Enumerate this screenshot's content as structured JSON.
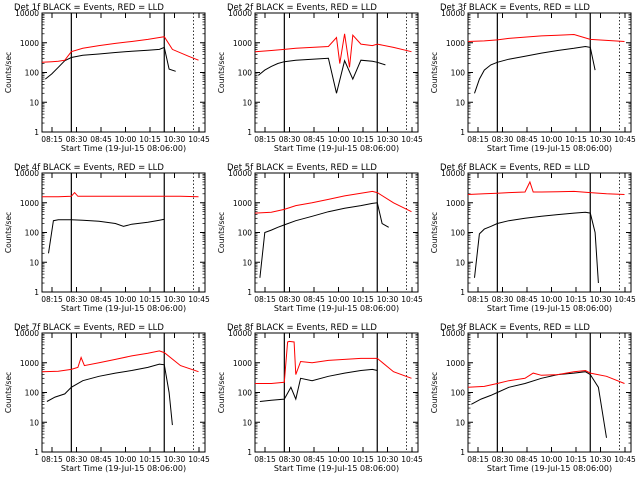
{
  "figure": {
    "ylabel": "Counts/sec",
    "xlabel": "Start Time (19-Jul-15 08:06:00)",
    "xticks": [
      "08:15",
      "08:30",
      "08:45",
      "10:00",
      "10:15",
      "10:30",
      "10:45"
    ],
    "yticks": [
      "1",
      "10",
      "100",
      "1000",
      "10000"
    ],
    "colors": {
      "events": "#000000",
      "lld": "#ff0000",
      "axis": "#000000"
    }
  },
  "chart_data": [
    {
      "type": "line",
      "title": "Det 1f BLACK = Events, RED = LLD",
      "yscale": "log",
      "ylim": [
        1,
        10000
      ],
      "xlim": [
        0,
        1
      ],
      "markers": [
        0.18,
        0.75,
        0.93
      ],
      "series": [
        {
          "name": "Events",
          "x": [
            0.02,
            0.06,
            0.1,
            0.14,
            0.18,
            0.25,
            0.35,
            0.45,
            0.55,
            0.65,
            0.72,
            0.75,
            0.78,
            0.82
          ],
          "y": [
            60,
            90,
            150,
            250,
            320,
            380,
            420,
            470,
            520,
            560,
            600,
            700,
            130,
            110
          ]
        },
        {
          "name": "LLD",
          "x": [
            0.0,
            0.06,
            0.1,
            0.14,
            0.18,
            0.25,
            0.35,
            0.45,
            0.55,
            0.65,
            0.72,
            0.75,
            0.8,
            0.9,
            0.96
          ],
          "y": [
            220,
            230,
            240,
            260,
            500,
            650,
            800,
            950,
            1100,
            1300,
            1500,
            1600,
            600,
            350,
            260
          ]
        }
      ]
    },
    {
      "type": "line",
      "title": "Det 2f BLACK = Events, RED = LLD",
      "yscale": "log",
      "ylim": [
        1,
        10000
      ],
      "xlim": [
        0,
        1
      ],
      "markers": [
        0.18,
        0.75,
        0.93
      ],
      "series": [
        {
          "name": "Events",
          "x": [
            0.02,
            0.06,
            0.1,
            0.14,
            0.18,
            0.25,
            0.35,
            0.45,
            0.5,
            0.55,
            0.6,
            0.65,
            0.72,
            0.75,
            0.8
          ],
          "y": [
            80,
            120,
            160,
            200,
            230,
            260,
            280,
            300,
            20,
            250,
            60,
            260,
            240,
            220,
            180
          ]
        },
        {
          "name": "LLD",
          "x": [
            0.0,
            0.1,
            0.18,
            0.25,
            0.35,
            0.45,
            0.5,
            0.52,
            0.55,
            0.58,
            0.6,
            0.65,
            0.72,
            0.75,
            0.85,
            0.96
          ],
          "y": [
            500,
            550,
            600,
            650,
            700,
            750,
            1500,
            200,
            2000,
            150,
            1800,
            900,
            800,
            900,
            700,
            500
          ]
        }
      ]
    },
    {
      "type": "line",
      "title": "Det 3f BLACK = Events, RED = LLD",
      "yscale": "log",
      "ylim": [
        1,
        10000
      ],
      "xlim": [
        0,
        1
      ],
      "markers": [
        0.18,
        0.75,
        0.93
      ],
      "series": [
        {
          "name": "Events",
          "x": [
            0.04,
            0.07,
            0.1,
            0.14,
            0.18,
            0.25,
            0.35,
            0.45,
            0.55,
            0.65,
            0.72,
            0.75,
            0.78
          ],
          "y": [
            20,
            60,
            120,
            180,
            220,
            280,
            350,
            450,
            550,
            650,
            750,
            700,
            120
          ]
        },
        {
          "name": "LLD",
          "x": [
            0.0,
            0.1,
            0.18,
            0.25,
            0.35,
            0.45,
            0.55,
            0.65,
            0.75,
            0.85,
            0.96
          ],
          "y": [
            1100,
            1150,
            1250,
            1400,
            1550,
            1700,
            1800,
            1900,
            1300,
            1200,
            1100
          ]
        }
      ]
    },
    {
      "type": "line",
      "title": "Det 4f BLACK = Events, RED = LLD",
      "yscale": "log",
      "ylim": [
        1,
        10000
      ],
      "xlim": [
        0,
        1
      ],
      "markers": [
        0.18,
        0.75,
        0.93
      ],
      "series": [
        {
          "name": "Events",
          "x": [
            0.04,
            0.07,
            0.1,
            0.18,
            0.25,
            0.35,
            0.45,
            0.5,
            0.55,
            0.65,
            0.72,
            0.75
          ],
          "y": [
            20,
            250,
            270,
            270,
            260,
            240,
            200,
            160,
            190,
            220,
            260,
            280
          ]
        },
        {
          "name": "LLD",
          "x": [
            0.0,
            0.1,
            0.18,
            0.2,
            0.22,
            0.25,
            0.35,
            0.45,
            0.55,
            0.65,
            0.75,
            0.85,
            0.96
          ],
          "y": [
            1600,
            1600,
            1650,
            2200,
            1650,
            1650,
            1650,
            1650,
            1650,
            1650,
            1650,
            1650,
            1600
          ]
        }
      ]
    },
    {
      "type": "line",
      "title": "Det 5f BLACK = Events, RED = LLD",
      "yscale": "log",
      "ylim": [
        1,
        10000
      ],
      "xlim": [
        0,
        1
      ],
      "markers": [
        0.18,
        0.75,
        0.93
      ],
      "series": [
        {
          "name": "Events",
          "x": [
            0.03,
            0.06,
            0.1,
            0.14,
            0.18,
            0.25,
            0.35,
            0.45,
            0.55,
            0.65,
            0.72,
            0.75,
            0.78,
            0.82
          ],
          "y": [
            3,
            100,
            120,
            150,
            180,
            250,
            350,
            500,
            650,
            800,
            950,
            1000,
            200,
            150
          ]
        },
        {
          "name": "LLD",
          "x": [
            0.0,
            0.1,
            0.18,
            0.25,
            0.35,
            0.45,
            0.55,
            0.65,
            0.72,
            0.75,
            0.85,
            0.96
          ],
          "y": [
            450,
            480,
            600,
            800,
            1000,
            1300,
            1700,
            2100,
            2400,
            2200,
            1000,
            500
          ]
        }
      ]
    },
    {
      "type": "line",
      "title": "Det 6f BLACK = Events, RED = LLD",
      "yscale": "log",
      "ylim": [
        1,
        10000
      ],
      "xlim": [
        0,
        1
      ],
      "markers": [
        0.18,
        0.75,
        0.93
      ],
      "series": [
        {
          "name": "Events",
          "x": [
            0.04,
            0.07,
            0.1,
            0.14,
            0.18,
            0.25,
            0.35,
            0.45,
            0.55,
            0.65,
            0.72,
            0.75,
            0.78,
            0.8
          ],
          "y": [
            3,
            90,
            130,
            160,
            200,
            250,
            300,
            350,
            400,
            450,
            480,
            450,
            100,
            2
          ]
        },
        {
          "name": "LLD",
          "x": [
            0.0,
            0.1,
            0.18,
            0.25,
            0.35,
            0.38,
            0.4,
            0.45,
            0.55,
            0.65,
            0.75,
            0.85,
            0.96
          ],
          "y": [
            1900,
            2000,
            2100,
            2200,
            2300,
            5000,
            2300,
            2300,
            2350,
            2400,
            2200,
            2000,
            1900
          ]
        }
      ]
    },
    {
      "type": "line",
      "title": "Det 7f BLACK = Events, RED = LLD",
      "yscale": "log",
      "ylim": [
        1,
        10000
      ],
      "xlim": [
        0,
        1
      ],
      "markers": [
        0.18,
        0.75,
        0.93
      ],
      "series": [
        {
          "name": "Events",
          "x": [
            0.03,
            0.08,
            0.14,
            0.18,
            0.25,
            0.35,
            0.45,
            0.55,
            0.65,
            0.72,
            0.75,
            0.78,
            0.8
          ],
          "y": [
            50,
            70,
            90,
            150,
            250,
            350,
            450,
            550,
            700,
            900,
            850,
            100,
            8
          ]
        },
        {
          "name": "LLD",
          "x": [
            0.0,
            0.1,
            0.18,
            0.22,
            0.24,
            0.26,
            0.35,
            0.45,
            0.55,
            0.65,
            0.72,
            0.75,
            0.85,
            0.96
          ],
          "y": [
            500,
            520,
            600,
            700,
            1500,
            800,
            1000,
            1300,
            1700,
            2100,
            2500,
            2200,
            800,
            500
          ]
        }
      ]
    },
    {
      "type": "line",
      "title": "Det 8f BLACK = Events, RED = LLD",
      "yscale": "log",
      "ylim": [
        1,
        10000
      ],
      "xlim": [
        0,
        1
      ],
      "markers": [
        0.18,
        0.75,
        0.93
      ],
      "series": [
        {
          "name": "Events",
          "x": [
            0.03,
            0.1,
            0.18,
            0.22,
            0.25,
            0.28,
            0.35,
            0.45,
            0.55,
            0.65,
            0.72,
            0.75
          ],
          "y": [
            50,
            55,
            60,
            150,
            60,
            300,
            250,
            350,
            450,
            550,
            600,
            550
          ]
        },
        {
          "name": "LLD",
          "x": [
            0.0,
            0.1,
            0.18,
            0.2,
            0.21,
            0.24,
            0.25,
            0.28,
            0.35,
            0.45,
            0.55,
            0.65,
            0.75,
            0.85,
            0.96
          ],
          "y": [
            200,
            200,
            220,
            5000,
            5200,
            5000,
            400,
            1100,
            1000,
            1200,
            1300,
            1400,
            1400,
            500,
            300
          ]
        }
      ]
    },
    {
      "type": "line",
      "title": "Det 9f BLACK = Events, RED = LLD",
      "yscale": "log",
      "ylim": [
        1,
        10000
      ],
      "xlim": [
        0,
        1
      ],
      "markers": [
        0.18,
        0.75,
        0.93
      ],
      "series": [
        {
          "name": "Events",
          "x": [
            0.02,
            0.08,
            0.14,
            0.18,
            0.25,
            0.35,
            0.45,
            0.55,
            0.65,
            0.72,
            0.75,
            0.8,
            0.85
          ],
          "y": [
            40,
            60,
            80,
            100,
            150,
            200,
            300,
            400,
            450,
            500,
            400,
            150,
            3
          ]
        },
        {
          "name": "LLD",
          "x": [
            0.0,
            0.1,
            0.18,
            0.25,
            0.35,
            0.4,
            0.45,
            0.55,
            0.65,
            0.72,
            0.75,
            0.85,
            0.96
          ],
          "y": [
            150,
            160,
            200,
            250,
            300,
            450,
            380,
            400,
            500,
            550,
            450,
            350,
            200
          ]
        }
      ]
    }
  ]
}
